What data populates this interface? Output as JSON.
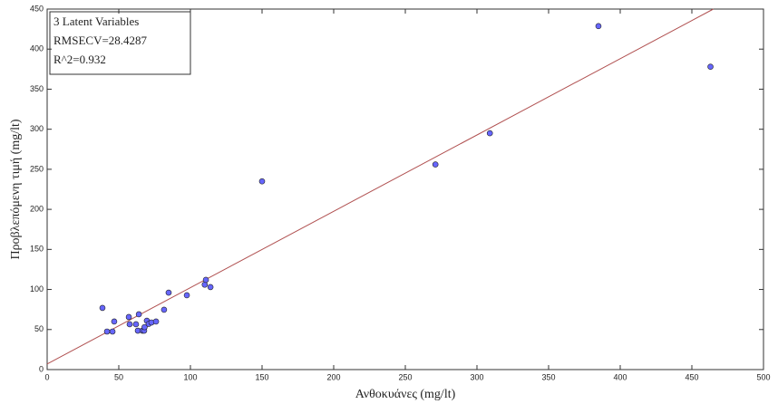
{
  "chart_data": {
    "type": "scatter",
    "xlabel": "Ανθοκυάνες (mg/lt)",
    "ylabel": "Προβλεπόμενη τιμή (mg/lt)",
    "annotations": [
      "3 Latent Variables",
      "RMSECV=28.4287",
      "R^2=0.932"
    ],
    "x": [
      38.6,
      41.8,
      45.6,
      46.8,
      57,
      57.6,
      62,
      63.3,
      64,
      66.5,
      67.7,
      68,
      69.6,
      70.9,
      72.8,
      76,
      81.6,
      84.8,
      97.5,
      110,
      110.8,
      114,
      150,
      271,
      309,
      384.8,
      463
    ],
    "values": [
      77,
      47.5,
      47.5,
      60,
      65.6,
      56.6,
      56.6,
      48.6,
      69,
      48.6,
      48.6,
      53,
      61,
      57,
      58.8,
      60,
      74.7,
      96,
      92.8,
      106,
      112,
      103,
      235,
      256,
      295,
      428.7,
      378
    ],
    "color": "#6666ff",
    "fit_line": {
      "x": [
        0,
        465
      ],
      "values": [
        7,
        450
      ],
      "color": "#b05050"
    },
    "xlim": [
      0,
      500
    ],
    "xticks": [
      0,
      50,
      100,
      150,
      200,
      250,
      300,
      350,
      400,
      450,
      500
    ],
    "ylim": [
      0,
      450
    ],
    "yticks": [
      0,
      50,
      100,
      150,
      200,
      250,
      300,
      350,
      400,
      450
    ]
  }
}
